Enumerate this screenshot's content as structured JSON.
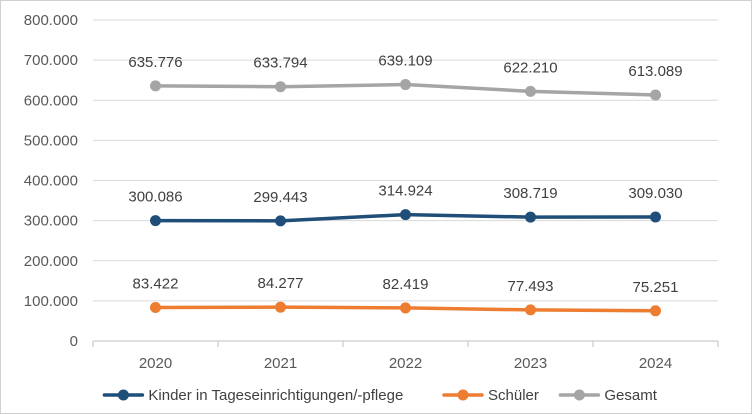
{
  "chart_data": {
    "type": "line",
    "title": "",
    "xlabel": "",
    "ylabel": "",
    "categories": [
      "2020",
      "2021",
      "2022",
      "2023",
      "2024"
    ],
    "ylim": [
      0,
      800000
    ],
    "yticks": [
      0,
      100000,
      200000,
      300000,
      400000,
      500000,
      600000,
      700000,
      800000
    ],
    "ytick_labels": [
      "0",
      "100.000",
      "200.000",
      "300.000",
      "400.000",
      "500.000",
      "600.000",
      "700.000",
      "800.000"
    ],
    "grid": true,
    "legend_position": "bottom",
    "series": [
      {
        "name": "Kinder in Tageseinrichtigungen/-pflege",
        "color": "#1f4e79",
        "values": [
          300086,
          299443,
          314924,
          308719,
          309030
        ],
        "labels": [
          "300.086",
          "299.443",
          "314.924",
          "308.719",
          "309.030"
        ]
      },
      {
        "name": "Schüler",
        "color": "#ed7d31",
        "values": [
          83422,
          84277,
          82419,
          77493,
          75251
        ],
        "labels": [
          "83.422",
          "84.277",
          "82.419",
          "77.493",
          "75.251"
        ]
      },
      {
        "name": "Gesamt",
        "color": "#a5a5a5",
        "values": [
          635776,
          633794,
          639109,
          622210,
          613089
        ],
        "labels": [
          "635.776",
          "633.794",
          "639.109",
          "622.210",
          "613.089"
        ]
      }
    ]
  }
}
